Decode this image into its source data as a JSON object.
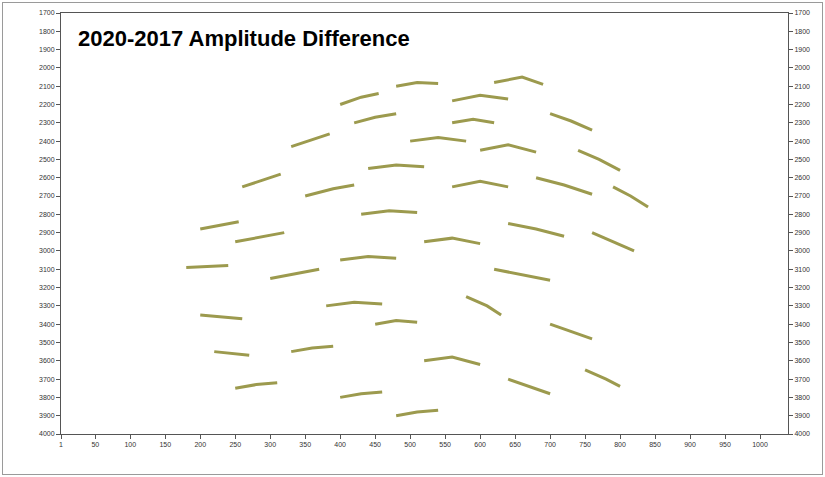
{
  "chart_data": {
    "type": "line",
    "title": "2020-2017 Amplitude Difference",
    "color": "#9c9a4e",
    "grid": false,
    "xlim": [
      1,
      1040
    ],
    "xticks": [
      1,
      50,
      100,
      150,
      200,
      250,
      300,
      350,
      400,
      450,
      500,
      550,
      600,
      650,
      700,
      750,
      800,
      850,
      900,
      950,
      1000
    ],
    "ylim": [
      4000,
      1700
    ],
    "yticks": [
      1700,
      1800,
      1900,
      2000,
      2100,
      2200,
      2300,
      2400,
      2500,
      2600,
      2700,
      2800,
      2900,
      3000,
      3100,
      3200,
      3300,
      3400,
      3500,
      3600,
      3700,
      3800,
      3900,
      4000
    ],
    "y2lim": [
      4000,
      1700
    ],
    "y2ticks": [
      1700,
      1800,
      1900,
      2000,
      2100,
      2200,
      2300,
      2400,
      2500,
      2600,
      2700,
      2800,
      2900,
      3000,
      3100,
      3200,
      3300,
      3400,
      3500,
      3600,
      3700,
      3800,
      3900,
      4000
    ],
    "x": [
      180,
      210,
      240,
      null,
      200,
      230,
      255,
      null,
      260,
      290,
      315,
      null,
      330,
      360,
      385,
      null,
      400,
      430,
      455,
      null,
      420,
      450,
      480,
      null,
      480,
      510,
      540,
      null,
      560,
      600,
      640,
      null,
      620,
      660,
      690,
      null,
      700,
      730,
      760,
      null,
      740,
      770,
      800,
      null,
      790,
      815,
      840,
      null,
      500,
      540,
      580,
      null,
      600,
      640,
      680,
      null,
      440,
      480,
      520,
      null,
      350,
      390,
      420,
      null,
      250,
      290,
      320,
      null,
      680,
      720,
      760,
      null,
      560,
      600,
      640,
      null,
      430,
      470,
      510,
      null,
      300,
      340,
      370,
      null,
      200,
      230,
      260,
      null,
      520,
      560,
      600,
      null,
      640,
      680,
      720,
      null,
      760,
      790,
      820,
      null,
      400,
      440,
      480,
      null,
      580,
      610,
      630,
      null,
      620,
      660,
      700,
      null,
      450,
      480,
      510,
      null,
      330,
      360,
      390,
      null,
      700,
      730,
      760,
      null,
      520,
      560,
      600,
      null,
      250,
      280,
      310,
      null,
      400,
      430,
      460,
      null,
      640,
      670,
      700,
      null,
      480,
      510,
      540,
      null,
      750,
      780,
      800,
      null,
      220,
      245,
      270,
      null,
      560,
      590,
      620,
      null,
      380,
      420,
      460
    ],
    "values": [
      3090,
      3085,
      3080,
      null,
      2880,
      2860,
      2840,
      null,
      2650,
      2610,
      2580,
      null,
      2430,
      2390,
      2360,
      null,
      2200,
      2160,
      2140,
      null,
      2300,
      2270,
      2250,
      null,
      2100,
      2080,
      2085,
      null,
      2180,
      2150,
      2170,
      null,
      2080,
      2050,
      2090,
      null,
      2250,
      2290,
      2340,
      null,
      2450,
      2500,
      2560,
      null,
      2650,
      2700,
      2760,
      null,
      2400,
      2380,
      2400,
      null,
      2450,
      2420,
      2460,
      null,
      2550,
      2530,
      2540,
      null,
      2700,
      2660,
      2640,
      null,
      2950,
      2920,
      2900,
      null,
      2600,
      2640,
      2690,
      null,
      2650,
      2620,
      2650,
      null,
      2800,
      2780,
      2790,
      null,
      3150,
      3120,
      3100,
      null,
      3350,
      3360,
      3370,
      null,
      2950,
      2930,
      2960,
      null,
      2850,
      2880,
      2920,
      null,
      2900,
      2950,
      3000,
      null,
      3050,
      3030,
      3040,
      null,
      3250,
      3300,
      3350,
      null,
      3100,
      3130,
      3160,
      null,
      3400,
      3380,
      3390,
      null,
      3550,
      3530,
      3520,
      null,
      3400,
      3440,
      3480,
      null,
      3600,
      3580,
      3620,
      null,
      3750,
      3730,
      3720,
      null,
      3800,
      3780,
      3770,
      null,
      3700,
      3740,
      3780,
      null,
      3900,
      3880,
      3870,
      null,
      3650,
      3700,
      3740,
      null,
      3550,
      3560,
      3570,
      null,
      2300,
      2280,
      2300,
      null,
      3300,
      3280,
      3290
    ]
  }
}
